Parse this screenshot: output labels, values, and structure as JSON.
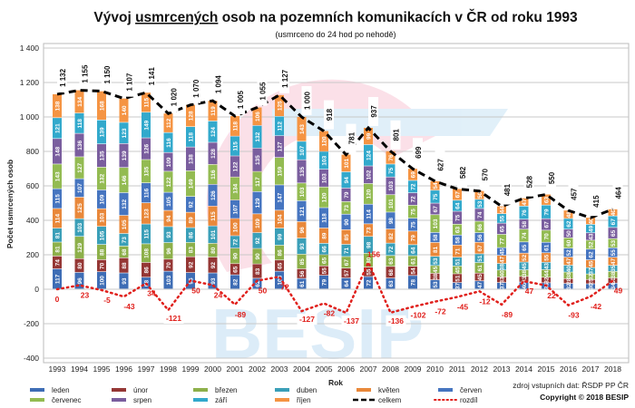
{
  "chart_data": {
    "type": "bar",
    "title_parts": [
      "Vývoj ",
      "usmrcených",
      " osob na pozemních komunikacích v ČR od roku 1993"
    ],
    "subtitle": "(usmrceno do 24 hod po nehodě)",
    "xlabel": "Rok",
    "ylabel": "Počet usmrcených osob",
    "ylim": [
      -400,
      1400
    ],
    "yticks": [
      "-400",
      "-200",
      "0",
      "200",
      "400",
      "600",
      "800",
      "1 000",
      "1 200",
      "1 400"
    ],
    "ytick_values": [
      -400,
      -200,
      0,
      200,
      400,
      600,
      800,
      1000,
      1200,
      1400
    ],
    "grid": true,
    "legend_position": "bottom",
    "categories": [
      "1993",
      "1994",
      "1995",
      "1996",
      "1997",
      "1998",
      "1999",
      "2000",
      "2001",
      "2002",
      "2003",
      "2004",
      "2005",
      "2006",
      "2007",
      "2008",
      "2009",
      "2010",
      "2011",
      "2012",
      "2013",
      "2014",
      "2015",
      "2016",
      "2017",
      "2018"
    ],
    "series": [
      {
        "name": "leden",
        "color": "#3e6db5",
        "values": [
          117,
          96,
          100,
          93,
          68,
          103,
          95,
          93,
          82,
          62,
          103,
          61,
          79,
          64,
          72,
          63,
          78,
          53,
          37,
          47,
          37,
          40,
          36,
          32,
          30,
          34
        ]
      },
      {
        "name": "únor",
        "color": "#953735",
        "values": [
          74,
          80,
          70,
          88,
          86,
          70,
          92,
          92,
          65,
          83,
          65,
          56,
          55,
          57,
          55,
          68,
          54,
          38,
          51,
          45,
          33,
          33,
          32,
          28,
          25,
          30
        ]
      },
      {
        "name": "březen",
        "color": "#8db04a",
        "values": [
          81,
          129,
          88,
          68,
          108,
          96,
          83,
          80,
          90,
          90,
          86,
          85,
          65,
          67,
          80,
          63,
          61,
          45,
          45,
          61,
          40,
          38,
          44,
          38,
          32,
          38
        ]
      },
      {
        "name": "duben",
        "color": "#3a9fb8",
        "values": [
          81,
          103,
          105,
          73,
          115,
          93,
          86,
          101,
          72,
          92,
          99,
          93,
          66,
          71,
          98,
          72,
          64,
          53,
          51,
          51,
          38,
          45,
          43,
          40,
          37,
          35
        ]
      },
      {
        "name": "květen",
        "color": "#e9883a",
        "values": [
          114,
          125,
          103,
          105,
          123,
          94,
          89,
          115,
          100,
          109,
          104,
          96,
          89,
          85,
          73,
          82,
          79,
          81,
          71,
          67,
          47,
          52,
          55,
          47,
          45,
          47
        ]
      },
      {
        "name": "červen",
        "color": "#4675c0",
        "values": [
          115,
          107,
          109,
          132,
          116,
          105,
          92,
          126,
          107,
          129,
          147,
          121,
          118,
          90,
          114,
          98,
          75,
          58,
          58,
          56,
          45,
          65,
          61,
          52,
          62,
          55
        ]
      },
      {
        "name": "červenec",
        "color": "#93bb52",
        "values": [
          143,
          127,
          132,
          146,
          135,
          122,
          149,
          116,
          134,
          117,
          159,
          103,
          120,
          73,
          120,
          101,
          75,
          103,
          63,
          66,
          77,
          74,
          70,
          60,
          52,
          53
        ]
      },
      {
        "name": "srpen",
        "color": "#7a5e9e",
        "values": [
          148,
          136,
          135,
          139,
          126,
          109,
          138,
          128,
          122,
          135,
          127,
          135,
          103,
          79,
          102,
          103,
          72,
          67,
          75,
          74,
          65,
          58,
          67,
          50,
          43,
          65
        ]
      },
      {
        "name": "září",
        "color": "#32a9cc",
        "values": [
          121,
          118,
          139,
          123,
          149,
          116,
          118,
          124,
          115,
          132,
          112,
          107,
          103,
          94,
          124,
          75,
          72,
          75,
          64,
          53,
          55,
          76,
          79,
          62,
          49,
          67
        ]
      },
      {
        "name": "říjen",
        "color": "#f59443",
        "values": [
          138,
          134,
          168,
          140,
          115,
          112,
          128,
          119,
          118,
          106,
          125,
          143,
          120,
          101,
          99,
          76,
          69,
          54,
          67,
          50,
          44,
          47,
          63,
          48,
          40,
          40
        ]
      }
    ],
    "totals": {
      "name": "celkem",
      "color": "#000000",
      "values": [
        1132,
        1155,
        1150,
        1107,
        1141,
        1020,
        1070,
        1094,
        1005,
        1055,
        1127,
        1000,
        918,
        781,
        937,
        801,
        699,
        627,
        582,
        570,
        481,
        528,
        550,
        457,
        415,
        464
      ],
      "labels": [
        "1 132",
        "1 155",
        "1 150",
        "1 107",
        "1 141",
        "1 020",
        "1 070",
        "1 094",
        "1 005",
        "1 055",
        "1 127",
        "1 000",
        "918",
        "781",
        "937",
        "801",
        "699",
        "627",
        "582",
        "570",
        "481",
        "528",
        "550",
        "457",
        "415",
        "464"
      ]
    },
    "difference": {
      "name": "rozdíl",
      "color": "#e0201c",
      "values": [
        0,
        23,
        -5,
        -43,
        34,
        -121,
        50,
        24,
        -89,
        50,
        72,
        -127,
        -82,
        -137,
        156,
        -136,
        -102,
        -72,
        -45,
        -12,
        -89,
        47,
        22,
        -93,
        -42,
        49
      ]
    }
  },
  "source": "zdroj vstupních dat: ŘSDP PP ČR",
  "copyright": "Copyright © 2018 BESIP",
  "watermark": "BESIP"
}
